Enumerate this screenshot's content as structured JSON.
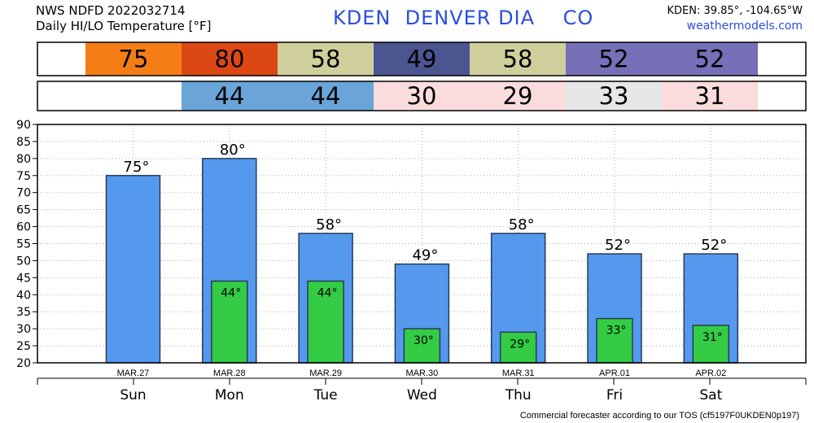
{
  "header": {
    "source": "NWS NDFD 2022032714",
    "product": "Daily HI/LO Temperature [°F]",
    "station": "KDEN  DENVER DIA    CO",
    "coords": "KDEN: 39.85°, -104.65°W",
    "site": "weathermodels.com"
  },
  "footer": {
    "note": "Commercial forecaster according to our TOS (cf5197F0UKDEN0p197)"
  },
  "colors": {
    "hi_bar": "#5599ee",
    "lo_bar": "#33cc44",
    "bar_stroke": "#2a3a55"
  },
  "hi_strip": [
    {
      "value": "",
      "color": "#ffffff"
    },
    {
      "value": "75",
      "color": "#f57d16"
    },
    {
      "value": "80",
      "color": "#dc4814"
    },
    {
      "value": "58",
      "color": "#cfcf9c"
    },
    {
      "value": "49",
      "color": "#4b5590"
    },
    {
      "value": "58",
      "color": "#cfcf9c"
    },
    {
      "value": "52",
      "color": "#7670b8"
    },
    {
      "value": "52",
      "color": "#7670b8"
    },
    {
      "value": "",
      "color": "#ffffff"
    }
  ],
  "lo_strip": [
    {
      "value": "",
      "color": "#ffffff"
    },
    {
      "value": "",
      "color": "#ffffff"
    },
    {
      "value": "44",
      "color": "#6aa4d8"
    },
    {
      "value": "44",
      "color": "#6aa4d8"
    },
    {
      "value": "30",
      "color": "#fadcdc"
    },
    {
      "value": "29",
      "color": "#fadcdc"
    },
    {
      "value": "33",
      "color": "#e6e8e8"
    },
    {
      "value": "31",
      "color": "#fadcdc"
    },
    {
      "value": "",
      "color": "#ffffff"
    }
  ],
  "chart_data": {
    "type": "bar",
    "title": "Daily HI/LO Temperature [°F]",
    "dates": [
      "MAR.27",
      "MAR.28",
      "MAR.29",
      "MAR.30",
      "MAR.31",
      "APR.01",
      "APR.02"
    ],
    "categories": [
      "Sun",
      "Mon",
      "Tue",
      "Wed",
      "Thu",
      "Fri",
      "Sat"
    ],
    "series": [
      {
        "values": [
          75,
          80,
          58,
          49,
          58,
          52,
          52
        ]
      },
      {
        "values": [
          null,
          44,
          44,
          30,
          29,
          33,
          31
        ]
      }
    ],
    "ylim": [
      20,
      90
    ],
    "yticks": [
      20,
      25,
      30,
      35,
      40,
      45,
      50,
      55,
      60,
      65,
      70,
      75,
      80,
      85,
      90
    ],
    "grid": true
  }
}
